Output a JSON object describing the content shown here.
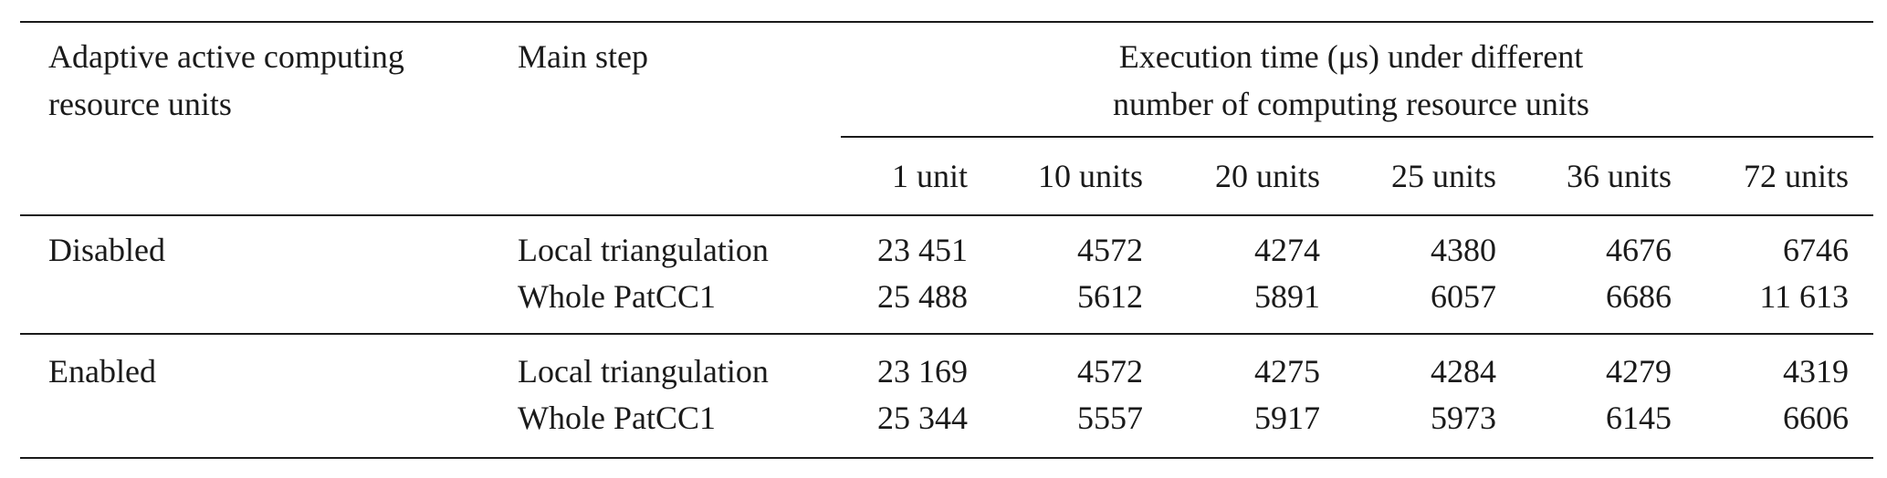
{
  "table": {
    "header": {
      "group_label": [
        "Adaptive active computing",
        "resource units"
      ],
      "step_label": [
        "Main step"
      ],
      "time_label": [
        "Execution time (μs) under different",
        "number of computing resource units"
      ],
      "units": [
        "1 unit",
        "10 units",
        "20 units",
        "25 units",
        "36 units",
        "72 units"
      ]
    },
    "groups": [
      {
        "label": "Disabled",
        "rows": [
          {
            "step": "Local triangulation",
            "values": [
              "23 451",
              "4572",
              "4274",
              "4380",
              "4676",
              "6746"
            ]
          },
          {
            "step": "Whole PatCC1",
            "values": [
              "25 488",
              "5612",
              "5891",
              "6057",
              "6686",
              "11 613"
            ]
          }
        ]
      },
      {
        "label": "Enabled",
        "rows": [
          {
            "step": "Local triangulation",
            "values": [
              "23 169",
              "4572",
              "4275",
              "4284",
              "4279",
              "4319"
            ]
          },
          {
            "step": "Whole PatCC1",
            "values": [
              "25 344",
              "5557",
              "5917",
              "5973",
              "6145",
              "6606"
            ]
          }
        ]
      }
    ]
  }
}
